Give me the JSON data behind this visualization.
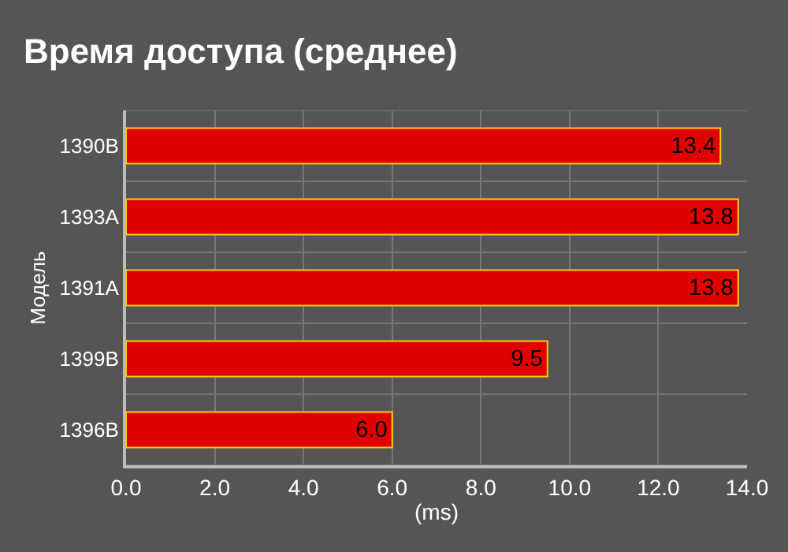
{
  "chart_data": {
    "type": "bar",
    "orientation": "horizontal",
    "title": "Время доступа (среднее)",
    "xlabel": "(ms)",
    "ylabel": "Модель",
    "categories": [
      "1390B",
      "1393A",
      "1391A",
      "1399B",
      "1396B"
    ],
    "values": [
      13.4,
      13.8,
      13.8,
      9.5,
      6.0
    ],
    "value_labels": [
      "13.4",
      "13.8",
      "13.8",
      "9.5",
      "6.0"
    ],
    "color": "#e00000",
    "grid": true,
    "xlim": [
      0,
      14
    ],
    "xticks": [
      {
        "value": 0,
        "label": "0.0"
      },
      {
        "value": 2,
        "label": "2.0"
      },
      {
        "value": 4,
        "label": "4.0"
      },
      {
        "value": 6,
        "label": "6.0"
      },
      {
        "value": 8,
        "label": "8.0"
      },
      {
        "value": 10,
        "label": "10.0"
      },
      {
        "value": 12,
        "label": "12.0"
      },
      {
        "value": 14,
        "label": "14.0"
      }
    ]
  }
}
